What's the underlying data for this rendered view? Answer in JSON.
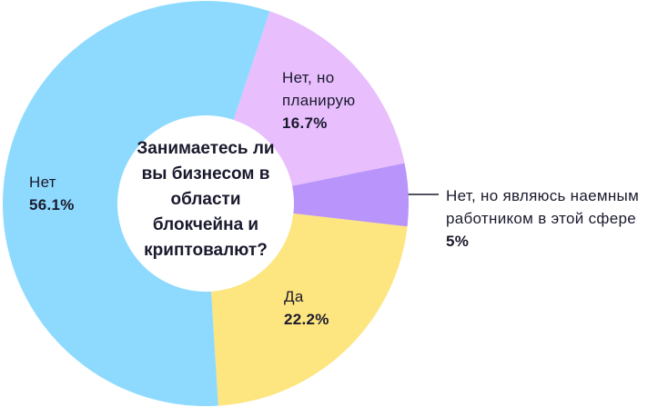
{
  "chart_data": {
    "type": "donut",
    "title": "Занимаетесь ли вы бизнесом в области блокчейна и криптовалют?",
    "categories": [
      "Нет, но планирую",
      "Нет, но являюсь наемным работником в этой сфере",
      "Да",
      "Нет"
    ],
    "values": [
      16.7,
      5,
      22.2,
      56.1
    ],
    "value_labels": [
      "16.7%",
      "5%",
      "22.2%",
      "56.1%"
    ],
    "colors": [
      "#e8befc",
      "#b894fb",
      "#fde57f",
      "#8edafe"
    ]
  }
}
